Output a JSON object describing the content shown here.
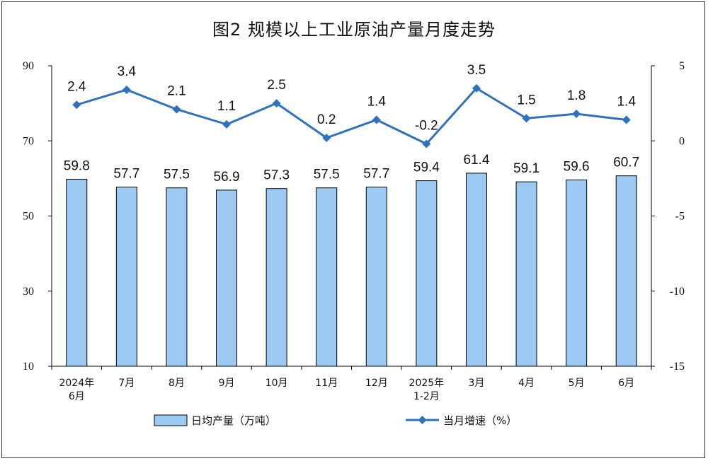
{
  "title": "图2  规模以上工业原油产量月度走势",
  "colors": {
    "bar_fill": "#9ccaf3",
    "bar_stroke": "#000000",
    "line": "#2e72bd",
    "axis": "#000000"
  },
  "chart_data": {
    "type": "bar",
    "title": "图2  规模以上工业原油产量月度走势",
    "categories": [
      [
        "2024年",
        "6月"
      ],
      [
        "7月"
      ],
      [
        "8月"
      ],
      [
        "9月"
      ],
      [
        "10月"
      ],
      [
        "11月"
      ],
      [
        "12月"
      ],
      [
        "2025年",
        "1-2月"
      ],
      [
        "3月"
      ],
      [
        "4月"
      ],
      [
        "5月"
      ],
      [
        "6月"
      ]
    ],
    "y_left": {
      "min": 10,
      "max": 90,
      "ticks": [
        90,
        70,
        50,
        30,
        10
      ]
    },
    "y_right": {
      "min": -15,
      "max": 5,
      "ticks": [
        5,
        0,
        -5,
        -10,
        -15
      ]
    },
    "grid": false,
    "legend_position": "bottom",
    "series": [
      {
        "name": "日均产量（万吨）",
        "type": "bar",
        "axis": "left",
        "values": [
          59.8,
          57.7,
          57.5,
          56.9,
          57.3,
          57.5,
          57.7,
          59.4,
          61.4,
          59.1,
          59.6,
          60.7
        ],
        "labels": [
          "59.8",
          "57.7",
          "57.5",
          "56.9",
          "57.3",
          "57.5",
          "57.7",
          "59.4",
          "61.4",
          "59.1",
          "59.6",
          "60.7"
        ]
      },
      {
        "name": "当月增速（%）",
        "type": "line",
        "axis": "right",
        "values": [
          2.4,
          3.4,
          2.1,
          1.1,
          2.5,
          0.2,
          1.4,
          -0.2,
          3.5,
          1.5,
          1.8,
          1.4
        ],
        "labels": [
          "2.4",
          "3.4",
          "2.1",
          "1.1",
          "2.5",
          "0.2",
          "1.4",
          "-0.2",
          "3.5",
          "1.5",
          "1.8",
          "1.4"
        ]
      }
    ]
  }
}
